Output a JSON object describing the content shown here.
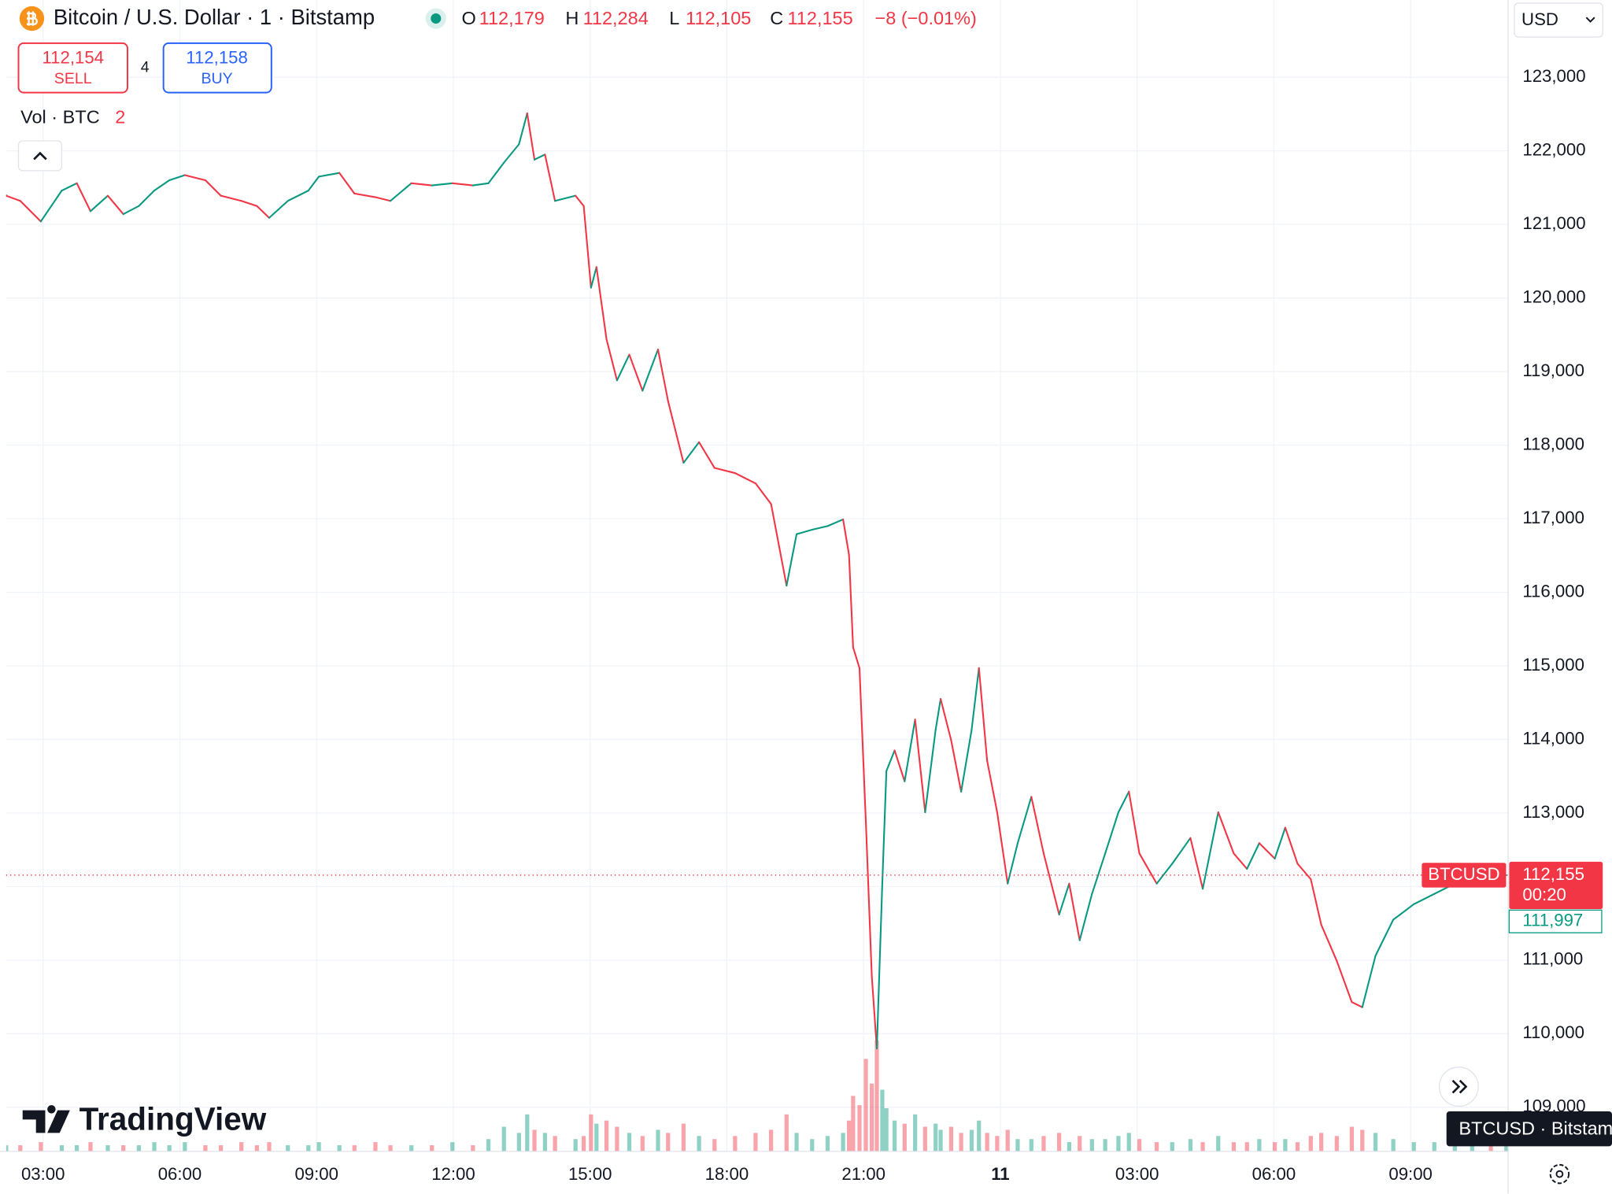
{
  "ui": {
    "ohlc": [
      {
        "key": "O",
        "value": "112,179"
      },
      {
        "key": "H",
        "value": "112,284"
      },
      {
        "key": "L",
        "value": "112,105"
      },
      {
        "key": "C",
        "value": "112,155"
      }
    ],
    "change": "−8 (−0.01%)",
    "sell_price": "112,154",
    "sell_label": "SELL",
    "spread": "4",
    "buy_price": "112,158",
    "buy_label": "BUY",
    "volume_label": "Vol · BTC",
    "volume_value": "2",
    "currency": "USD",
    "symbol_tag": "BTCUSD",
    "countdown": "00:20",
    "bid_price": "111,997",
    "logo": "TradingView",
    "tooltip": "BTCUSD · Bitstamp"
  },
  "chart_data": {
    "type": "line",
    "title": "Bitcoin / U.S. Dollar · 1 · Bitstamp",
    "up_color": "#089981",
    "down_color": "#f23645",
    "grid": true,
    "x": [
      2.19,
      2.5,
      2.95,
      3.41,
      3.74,
      4.04,
      4.42,
      4.76,
      5.1,
      5.44,
      5.77,
      6.11,
      6.56,
      6.9,
      7.35,
      7.69,
      7.96,
      8.37,
      8.82,
      9.05,
      9.5,
      9.83,
      10.29,
      10.62,
      11.08,
      11.53,
      11.98,
      12.43,
      12.77,
      13.11,
      13.44,
      13.62,
      13.78,
      14.01,
      14.23,
      14.68,
      14.86,
      15.02,
      15.14,
      15.36,
      15.59,
      15.86,
      16.15,
      16.49,
      16.71,
      17.05,
      17.39,
      17.73,
      18.18,
      18.63,
      18.97,
      19.31,
      19.53,
      19.87,
      20.21,
      20.55,
      20.68,
      20.77,
      20.91,
      21.05,
      21.18,
      21.29,
      21.41,
      21.5,
      21.68,
      21.9,
      22.13,
      22.35,
      22.58,
      22.69,
      22.92,
      23.14,
      23.37,
      23.53,
      23.71,
      23.93,
      24.16,
      24.38,
      24.68,
      24.95,
      25.29,
      25.51,
      25.74,
      26.01,
      26.3,
      26.59,
      26.82,
      27.05,
      27.43,
      27.77,
      28.17,
      28.44,
      28.78,
      29.12,
      29.41,
      29.68,
      30.02,
      30.25,
      30.52,
      30.81,
      31.04,
      31.38,
      31.71,
      31.94,
      32.23,
      32.62,
      33.07,
      33.52,
      33.97,
      34.35,
      34.76,
      35.1
    ],
    "values": [
      121390,
      121320,
      121040,
      121460,
      121560,
      121180,
      121390,
      121140,
      121250,
      121460,
      121600,
      121670,
      121600,
      121390,
      121320,
      121250,
      121090,
      121320,
      121460,
      121650,
      121700,
      121420,
      121370,
      121320,
      121560,
      121530,
      121560,
      121530,
      121560,
      121840,
      122090,
      122510,
      121880,
      121950,
      121320,
      121390,
      121250,
      120140,
      120420,
      119440,
      118880,
      119230,
      118740,
      119300,
      118600,
      117760,
      118040,
      117690,
      117620,
      117480,
      117200,
      116090,
      116790,
      116850,
      116900,
      116990,
      116510,
      115250,
      114970,
      112870,
      110780,
      109800,
      112040,
      113570,
      113850,
      113430,
      114270,
      113010,
      114130,
      114550,
      113990,
      113290,
      114130,
      114970,
      113710,
      113010,
      112040,
      112590,
      113220,
      112450,
      111620,
      112040,
      111270,
      111900,
      112450,
      113010,
      113290,
      112450,
      112040,
      112310,
      112660,
      111970,
      113010,
      112450,
      112240,
      112590,
      112380,
      112800,
      112310,
      112100,
      111480,
      110990,
      110430,
      110360,
      111060,
      111550,
      111760,
      111900,
      112040,
      112240,
      112150,
      112155
    ],
    "volume": [
      2,
      2,
      3,
      2,
      2,
      3,
      2,
      2,
      2,
      3,
      2,
      3,
      2,
      2,
      3,
      2,
      3,
      2,
      2,
      3,
      2,
      2,
      3,
      2,
      2,
      2,
      3,
      2,
      4,
      8,
      6,
      12,
      7,
      6,
      5,
      4,
      5,
      12,
      9,
      10,
      8,
      6,
      5,
      7,
      6,
      9,
      5,
      4,
      5,
      6,
      7,
      12,
      6,
      4,
      5,
      6,
      10,
      18,
      15,
      30,
      22,
      36,
      20,
      14,
      10,
      9,
      12,
      8,
      9,
      7,
      8,
      6,
      7,
      10,
      6,
      5,
      7,
      4,
      4,
      5,
      6,
      3,
      5,
      4,
      4,
      5,
      6,
      4,
      3,
      3,
      4,
      3,
      5,
      3,
      3,
      4,
      3,
      4,
      3,
      5,
      6,
      5,
      8,
      7,
      6,
      4,
      3,
      3,
      3,
      4,
      3,
      2
    ],
    "volume_ylim": [
      0,
      40
    ],
    "xlim": [
      2.19,
      35.14
    ],
    "xticks": [
      {
        "value": 3,
        "label": "03:00"
      },
      {
        "value": 6,
        "label": "06:00"
      },
      {
        "value": 9,
        "label": "09:00"
      },
      {
        "value": 12,
        "label": "12:00"
      },
      {
        "value": 15,
        "label": "15:00"
      },
      {
        "value": 18,
        "label": "18:00"
      },
      {
        "value": 21,
        "label": "21:00"
      },
      {
        "value": 24,
        "label": "11"
      },
      {
        "value": 27,
        "label": "03:00"
      },
      {
        "value": 30,
        "label": "06:00"
      },
      {
        "value": 33,
        "label": "09:00"
      }
    ],
    "ylim": [
      108400,
      124050
    ],
    "yticks": [
      {
        "value": 109000,
        "label": "109,000"
      },
      {
        "value": 110000,
        "label": "110,000"
      },
      {
        "value": 111000,
        "label": "111,000"
      },
      {
        "value": 112000,
        "label": "112,000"
      },
      {
        "value": 113000,
        "label": "113,000"
      },
      {
        "value": 114000,
        "label": "114,000"
      },
      {
        "value": 115000,
        "label": "115,000"
      },
      {
        "value": 116000,
        "label": "116,000"
      },
      {
        "value": 117000,
        "label": "117,000"
      },
      {
        "value": 118000,
        "label": "118,000"
      },
      {
        "value": 119000,
        "label": "119,000"
      },
      {
        "value": 120000,
        "label": "120,000"
      },
      {
        "value": 121000,
        "label": "121,000"
      },
      {
        "value": 122000,
        "label": "122,000"
      },
      {
        "value": 123000,
        "label": "123,000"
      }
    ],
    "last_price": {
      "value": 112155,
      "label": "112,155"
    }
  }
}
